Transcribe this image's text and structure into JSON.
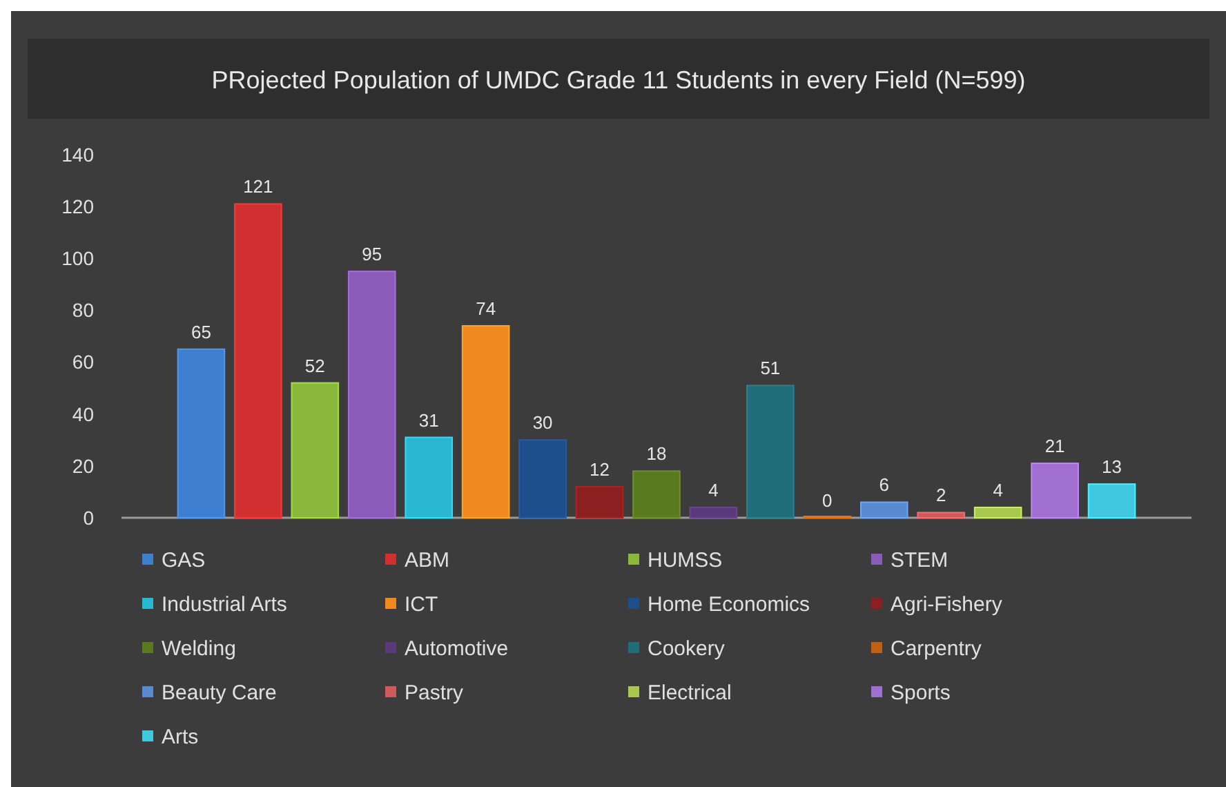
{
  "chart_data": {
    "type": "bar",
    "title": "PRojected Population of UMDC Grade 11 Students in every Field (N=599)",
    "categories": [
      null
    ],
    "series": [
      {
        "name": "GAS",
        "color": "#3f7fd0",
        "values": [
          65
        ]
      },
      {
        "name": "ABM",
        "color": "#d03030",
        "values": [
          121
        ]
      },
      {
        "name": "HUMSS",
        "color": "#8ab83a",
        "values": [
          52
        ]
      },
      {
        "name": "STEM",
        "color": "#8a5bb8",
        "values": [
          95
        ]
      },
      {
        "name": "Industrial Arts",
        "color": "#2ab8d0",
        "values": [
          31
        ]
      },
      {
        "name": "ICT",
        "color": "#f0891f",
        "values": [
          74
        ]
      },
      {
        "name": "Home Economics",
        "color": "#1f4e8c",
        "values": [
          30
        ]
      },
      {
        "name": "Agri-Fishery",
        "color": "#8c1f1f",
        "values": [
          12
        ]
      },
      {
        "name": "Welding",
        "color": "#5a7a1f",
        "values": [
          18
        ]
      },
      {
        "name": "Automotive",
        "color": "#5a3a7a",
        "values": [
          4
        ]
      },
      {
        "name": "Cookery",
        "color": "#1f6e7a",
        "values": [
          51
        ]
      },
      {
        "name": "Carpentry",
        "color": "#c06010",
        "values": [
          0
        ]
      },
      {
        "name": "Beauty Care",
        "color": "#5a8ad0",
        "values": [
          6
        ]
      },
      {
        "name": "Pastry",
        "color": "#d05a5a",
        "values": [
          2
        ]
      },
      {
        "name": "Electrical",
        "color": "#a8c850",
        "values": [
          4
        ]
      },
      {
        "name": "Sports",
        "color": "#a070d0",
        "values": [
          21
        ]
      },
      {
        "name": "Arts",
        "color": "#40c8e0",
        "values": [
          13
        ]
      }
    ],
    "ylim": [
      0,
      140
    ],
    "yticks": [
      0,
      20,
      40,
      60,
      80,
      100,
      120,
      140
    ],
    "data_labels": true,
    "legend": "bottom"
  }
}
